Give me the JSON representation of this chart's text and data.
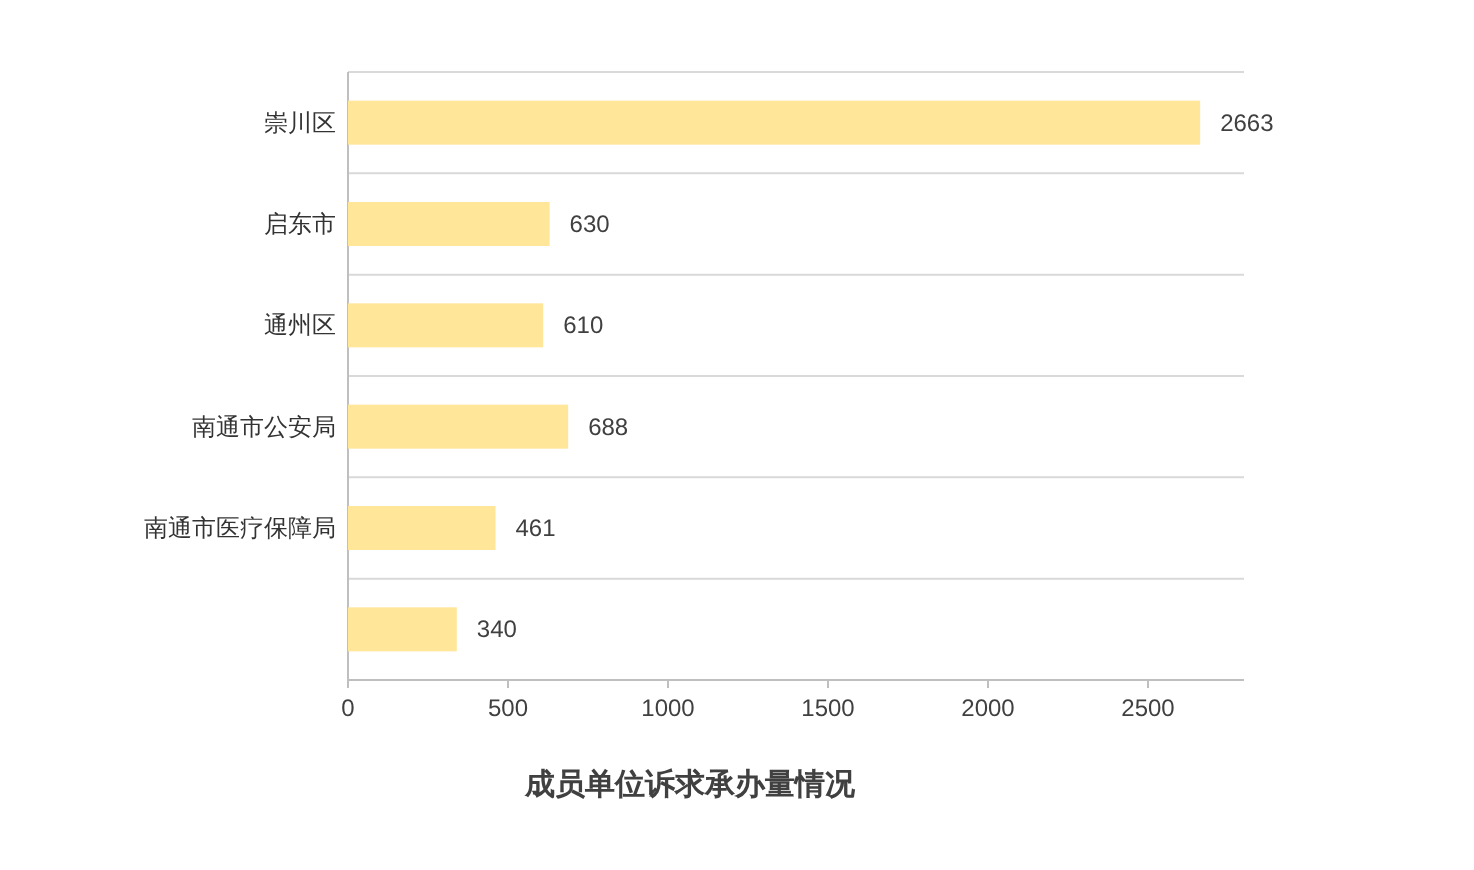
{
  "chart_data": {
    "type": "bar",
    "orientation": "horizontal",
    "title": "成员单位诉求承办量情况",
    "categories": [
      "崇川区",
      "启东市",
      "通州区",
      "南通市公安局",
      "南通市医疗保障局",
      null
    ],
    "values": [
      2663,
      630,
      610,
      688,
      461,
      340
    ],
    "color": "#ffe699",
    "xlim": [
      0,
      2800
    ],
    "xticks": [
      0,
      500,
      1000,
      1500,
      2000,
      2500
    ],
    "grid": "y",
    "data_labels": true
  }
}
